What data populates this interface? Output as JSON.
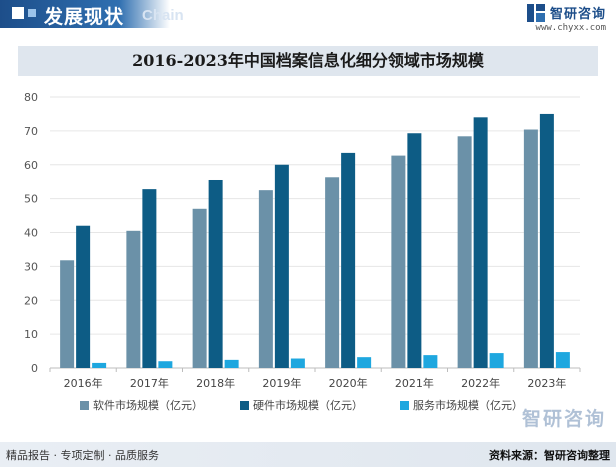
{
  "header": {
    "section_title": "发展现状",
    "section_subtitle": "Chain",
    "brand": "智研咨询",
    "site": "www.chyxx.com"
  },
  "colors": {
    "software": "#6b91a8",
    "hardware": "#0d5c85",
    "service": "#1ea7df",
    "brand": "#1d4e8a"
  },
  "chart_data": {
    "type": "bar",
    "title": "2016-2023年中国档案信息化细分领域市场规模",
    "categories": [
      "2016年",
      "2017年",
      "2018年",
      "2019年",
      "2020年",
      "2021年",
      "2022年",
      "2023年"
    ],
    "series": [
      {
        "name": "软件市场规模（亿元）",
        "values": [
          31.8,
          40.5,
          47.0,
          52.5,
          56.3,
          62.7,
          68.4,
          70.4
        ]
      },
      {
        "name": "硬件市场规模（亿元）",
        "values": [
          42.0,
          52.8,
          55.5,
          60.0,
          63.5,
          69.3,
          74.0,
          75.0
        ]
      },
      {
        "name": "服务市场规模（亿元）",
        "values": [
          1.5,
          2.0,
          2.4,
          2.8,
          3.2,
          3.8,
          4.4,
          4.7
        ]
      }
    ],
    "ylim": [
      0,
      80
    ],
    "yticks": [
      0,
      10,
      20,
      30,
      40,
      50,
      60,
      70,
      80
    ],
    "grid": "horizontal",
    "legend": "bottom"
  },
  "watermark": "智研咨询",
  "footer": {
    "left": "精品报告 · 专项定制 · 品质服务",
    "right": "资料来源：智研咨询整理"
  }
}
